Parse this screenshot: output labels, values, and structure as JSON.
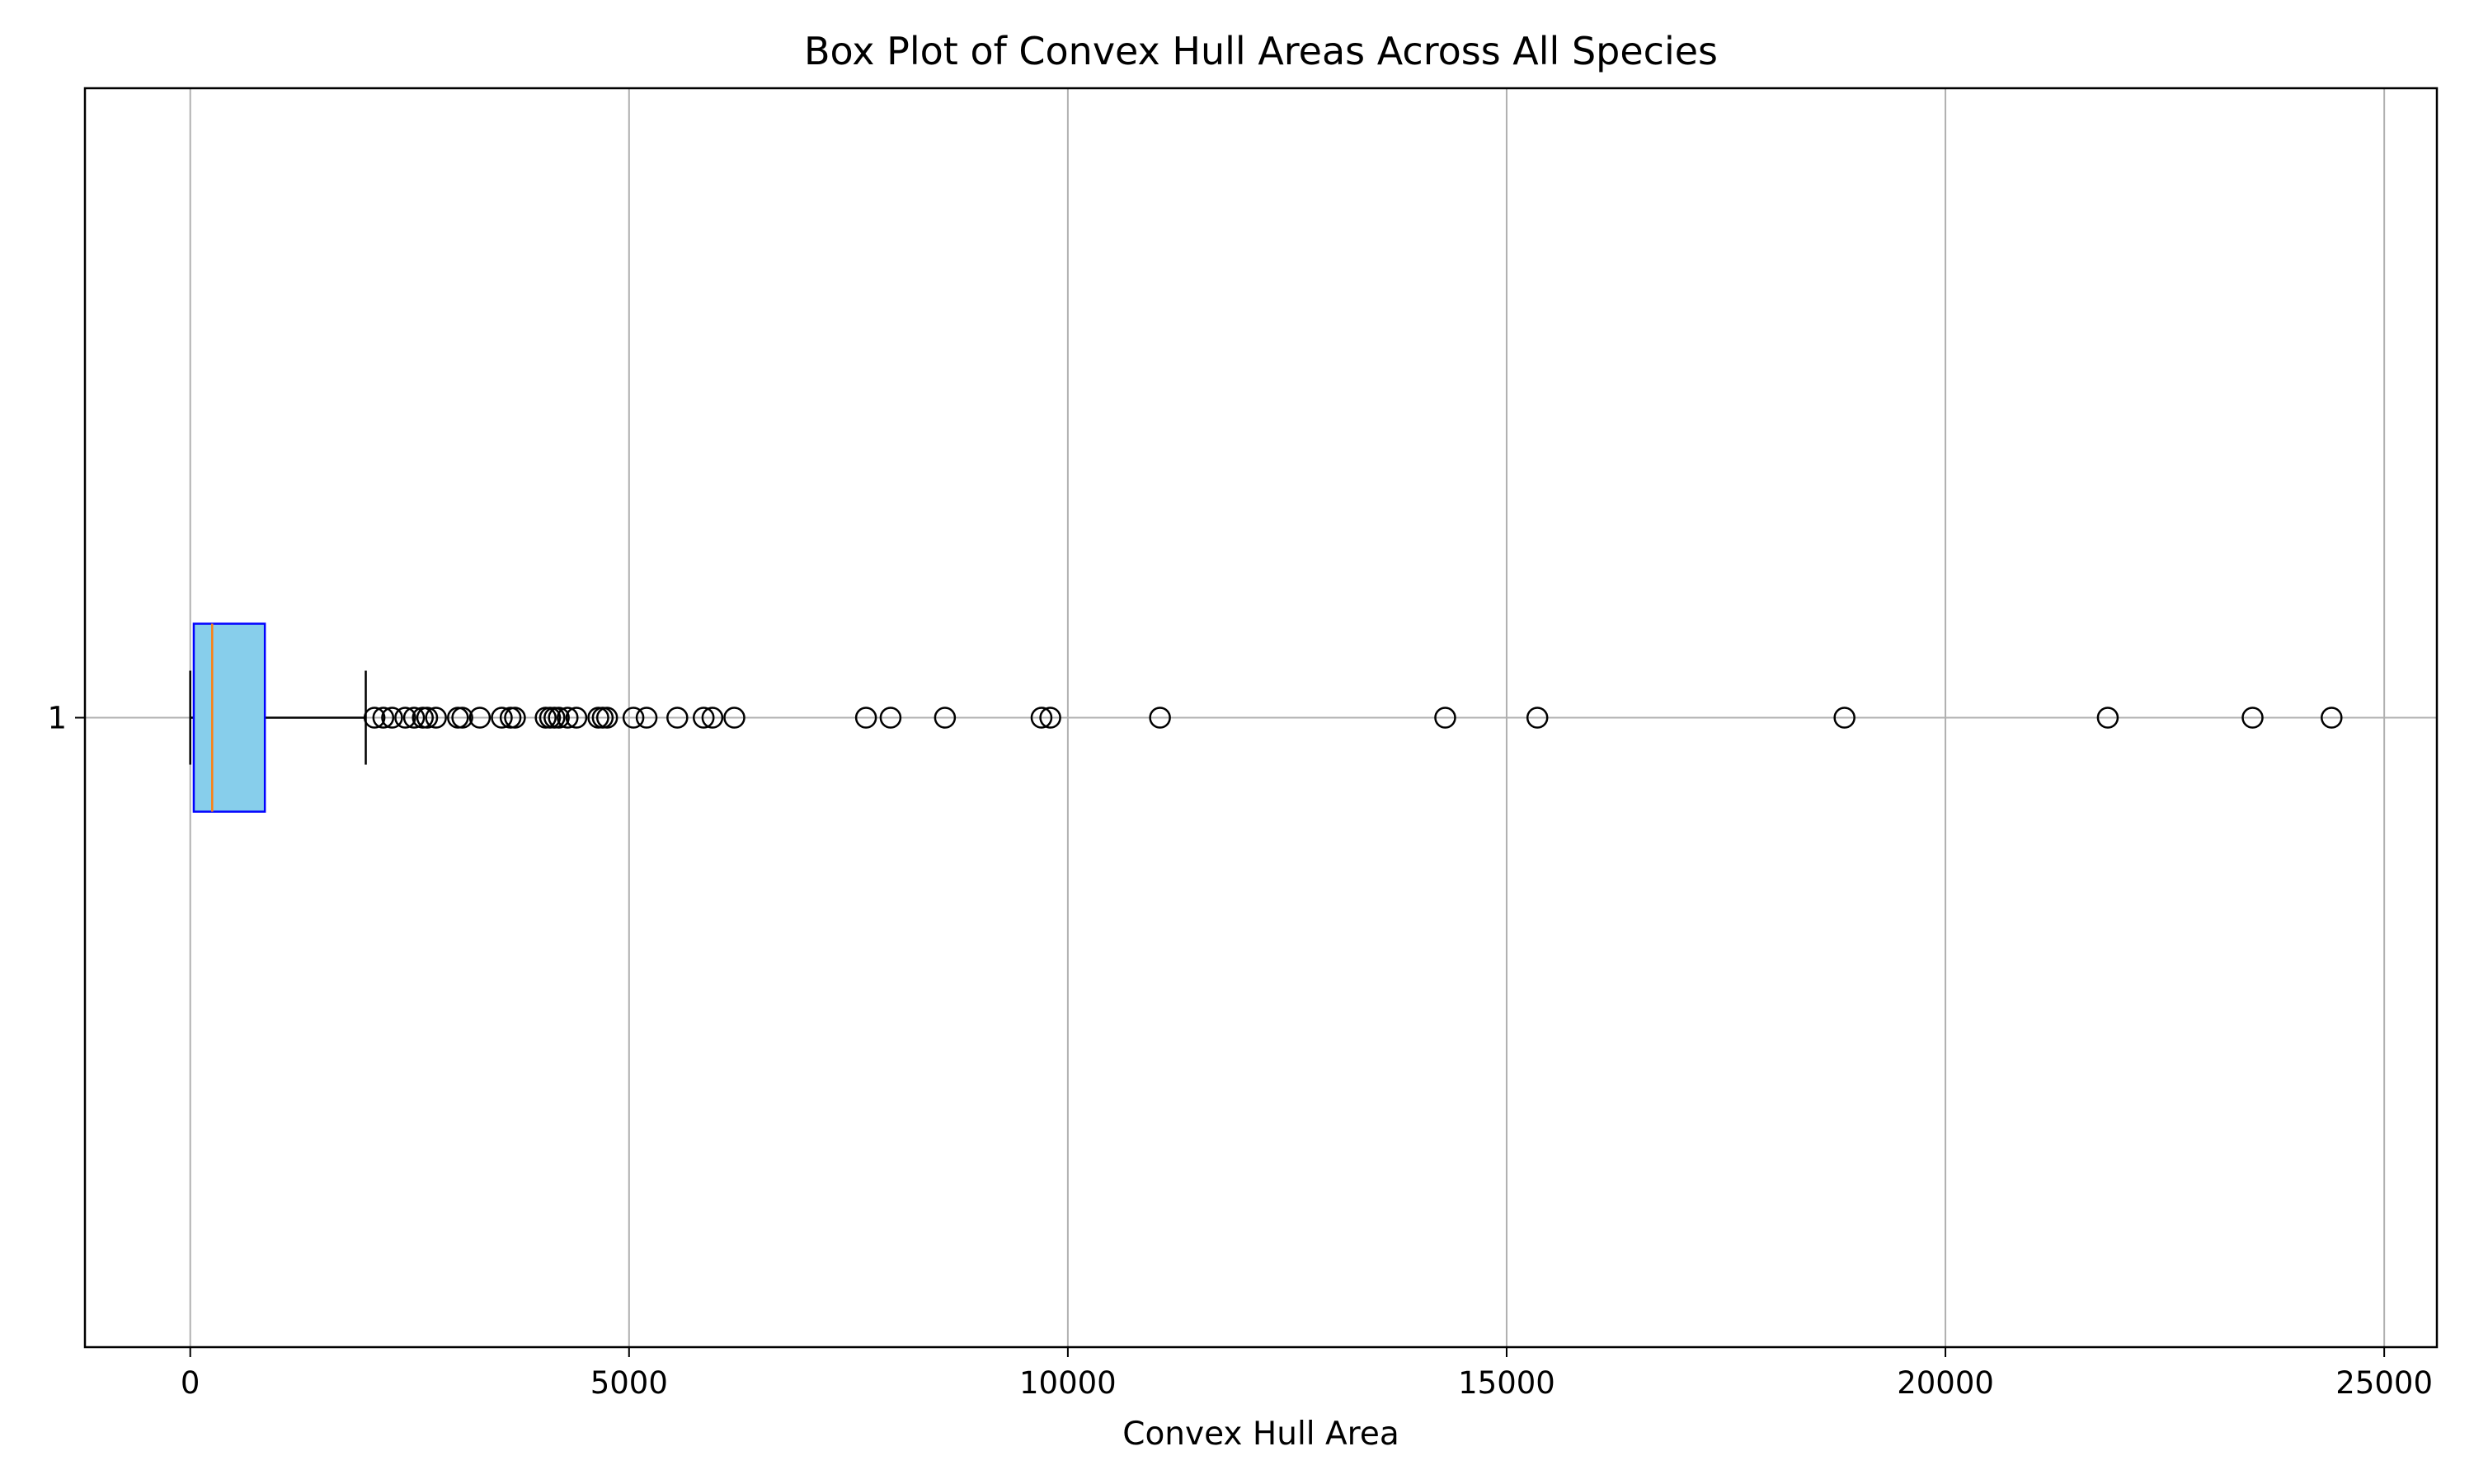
{
  "chart_data": {
    "type": "box",
    "orientation": "horizontal",
    "title": "Box Plot of Convex Hull Areas Across All Species",
    "xlabel": "Convex Hull Area",
    "ylabel": "",
    "xlim": [
      -1200,
      25600
    ],
    "x_ticks": [
      0,
      5000,
      10000,
      15000,
      20000,
      25000
    ],
    "x_tick_labels": [
      "0",
      "5000",
      "10000",
      "15000",
      "20000",
      "25000"
    ],
    "y_tick_labels": [
      "1"
    ],
    "grid": true,
    "boxes": [
      {
        "label": "1",
        "whisker_low": 0,
        "q1": 40,
        "median": 250,
        "q3": 850,
        "whisker_high": 2000,
        "outliers": [
          2100,
          2200,
          2300,
          2450,
          2550,
          2650,
          2700,
          2800,
          3050,
          3100,
          3300,
          3550,
          3650,
          3700,
          4050,
          4100,
          4150,
          4200,
          4300,
          4400,
          4650,
          4700,
          4750,
          5050,
          5200,
          5550,
          5850,
          5950,
          6200,
          7700,
          7980,
          8600,
          9700,
          9800,
          11050,
          14300,
          15350,
          18850,
          21850,
          23500,
          24400
        ]
      }
    ],
    "colors": {
      "box_fill": "#87ceeb",
      "box_edge": "#0000ff",
      "median": "#ff7f0e",
      "whisker": "#000000",
      "outlier_edge": "#000000",
      "grid": "#b0b0b0"
    }
  }
}
